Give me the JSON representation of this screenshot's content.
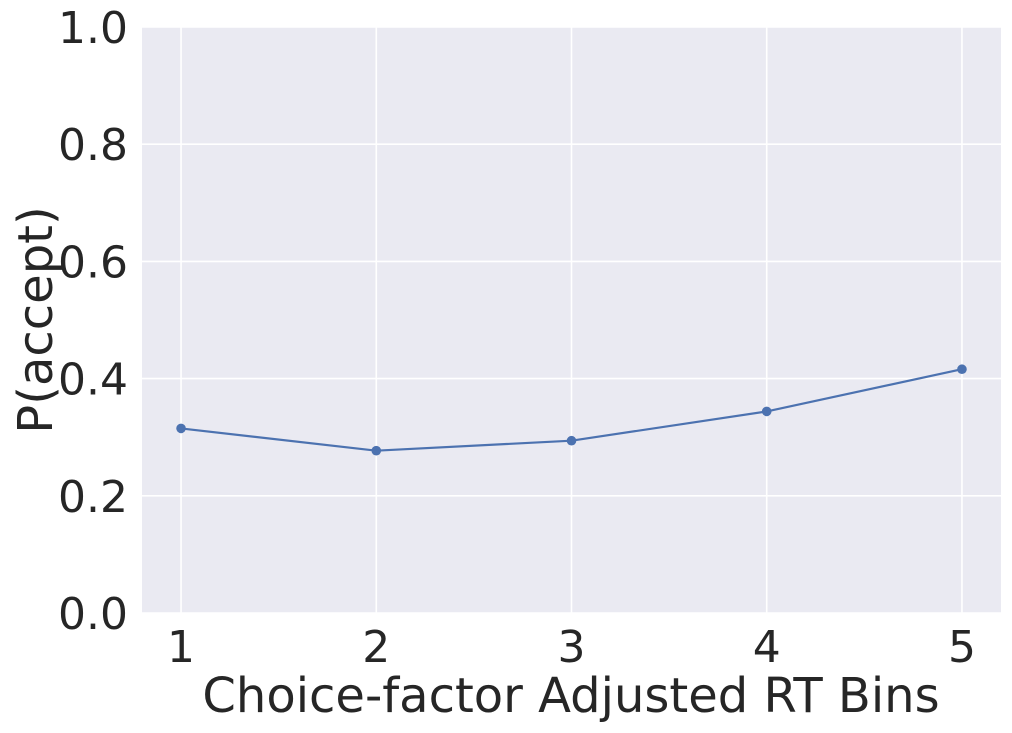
{
  "chart_data": {
    "type": "line",
    "title": "",
    "xlabel": "Choice-factor Adjusted RT Bins",
    "ylabel": "P(accept)",
    "x": [
      1,
      2,
      3,
      4,
      5
    ],
    "xticks": [
      "1",
      "2",
      "3",
      "4",
      "5"
    ],
    "xlim": [
      0.8,
      5.2
    ],
    "ylim": [
      0.0,
      1.0
    ],
    "yticks": [
      "0.0",
      "0.2",
      "0.4",
      "0.6",
      "0.8",
      "1.0"
    ],
    "series": [
      {
        "values": [
          0.315,
          0.277,
          0.294,
          0.344,
          0.416
        ],
        "color": "#4c72b0",
        "marker": "circle"
      }
    ],
    "grid": true,
    "background": "#eaeaf2"
  }
}
